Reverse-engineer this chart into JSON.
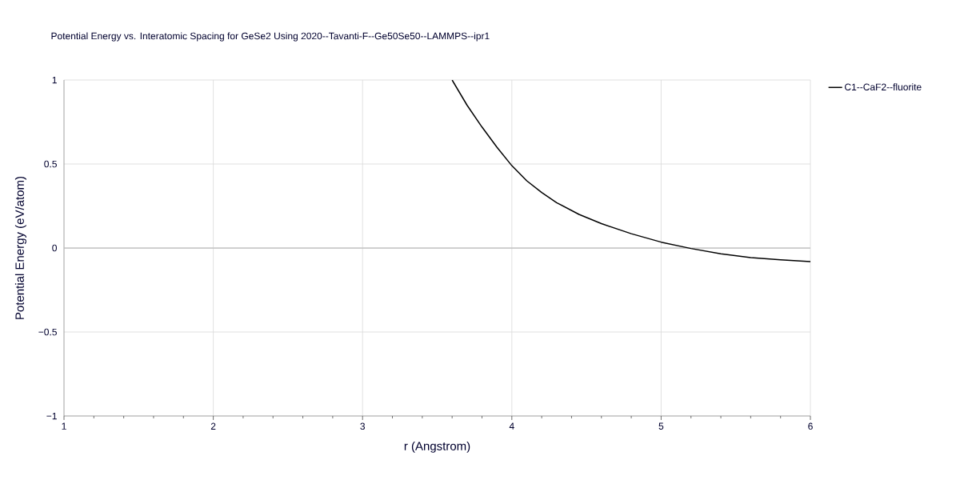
{
  "chart_data": {
    "type": "line",
    "title": "Potential Energy vs. Interatomic Spacing for GeSe2 Using 2020--Tavanti-F--Ge50Se50--LAMMPS--ipr1",
    "xlabel": "r (Angstrom)",
    "ylabel": "Potential Energy (eV/atom)",
    "xlim": [
      1,
      6
    ],
    "ylim": [
      -1,
      1
    ],
    "xticks": [
      1,
      2,
      3,
      4,
      5,
      6
    ],
    "yticks": [
      {
        "value": -1,
        "label": "−1"
      },
      {
        "value": -0.5,
        "label": "−0.5"
      },
      0,
      0.5,
      1
    ],
    "grid": true,
    "legend": "top right",
    "marker": "none",
    "line_style": "solid",
    "series": [
      {
        "name": "C1--CaF2--fluorite",
        "color": "#000000",
        "x": [
          3.6,
          3.7,
          3.8,
          3.9,
          4.0,
          4.1,
          4.2,
          4.3,
          4.45,
          4.6,
          4.8,
          5.0,
          5.2,
          5.4,
          5.6,
          5.8,
          6.0
        ],
        "values": [
          1.0,
          0.85,
          0.72,
          0.6,
          0.49,
          0.4,
          0.33,
          0.27,
          0.2,
          0.145,
          0.085,
          0.035,
          -0.003,
          -0.035,
          -0.057,
          -0.07,
          -0.081
        ]
      }
    ]
  }
}
